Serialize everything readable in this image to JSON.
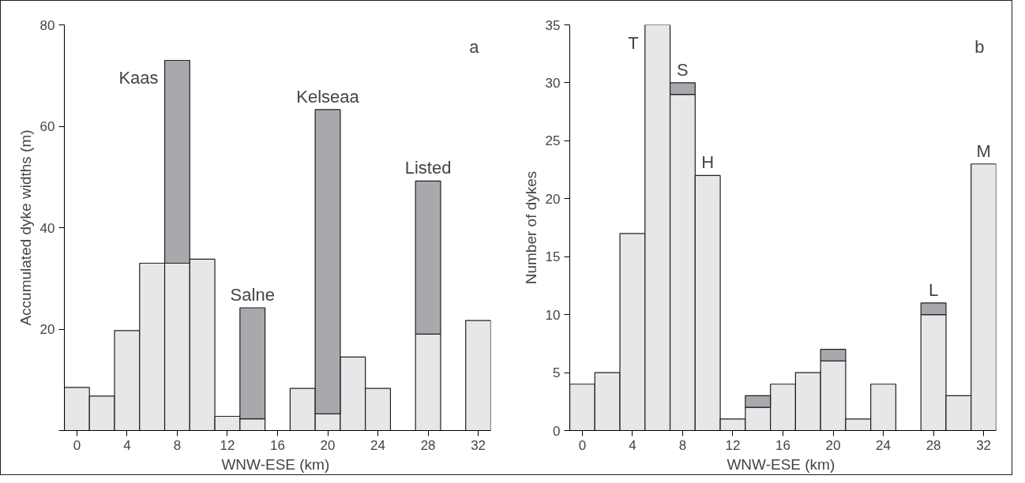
{
  "chart_data": [
    {
      "type": "bar",
      "stacked": true,
      "x": [
        0,
        2,
        4,
        6,
        8,
        10,
        12,
        14,
        16,
        18,
        20,
        22,
        24,
        26,
        28,
        30,
        32
      ],
      "xlabel": "WNW-ESE  (km)",
      "ylabel": "Accumulated dyke widths (m)",
      "series": [
        {
          "color": "#e6e7e8",
          "values": [
            8.5,
            6.8,
            19.7,
            33,
            33,
            33.8,
            2.8,
            2.3,
            0,
            8.3,
            3.3,
            14.5,
            8.3,
            0,
            19,
            0,
            21.7
          ]
        },
        {
          "color": "#a7a9ac",
          "values": [
            null,
            null,
            null,
            null,
            40,
            null,
            null,
            21.9,
            null,
            null,
            60,
            null,
            null,
            null,
            30.2,
            null,
            null
          ]
        }
      ],
      "xlim": [
        -1,
        33
      ],
      "xticks": [
        0,
        4,
        8,
        12,
        16,
        20,
        24,
        28,
        32
      ],
      "ylim": [
        0,
        80
      ],
      "yticks": [
        {
          "value": 0,
          "label": null
        },
        20,
        40,
        60,
        80
      ],
      "grid": false,
      "annotations": [
        "a",
        {
          "text": "Kaas",
          "x": 8,
          "y": 73
        },
        {
          "text": "Salne",
          "x": 14,
          "y": 24.2
        },
        {
          "text": "Kelseaa",
          "x": 20,
          "y": 63.3
        },
        {
          "text": "Listed",
          "x": 28,
          "y": 49.2
        }
      ]
    },
    {
      "type": "bar",
      "stacked": true,
      "x": [
        0,
        2,
        4,
        6,
        8,
        10,
        12,
        14,
        16,
        18,
        20,
        22,
        24,
        26,
        28,
        30,
        32
      ],
      "xlabel": "WNW-ESE  (km)",
      "ylabel": "Number of dykes",
      "series": [
        {
          "color": "#e6e7e8",
          "values": [
            4,
            5,
            17,
            35,
            29,
            22,
            1,
            2,
            4,
            5,
            6,
            1,
            4,
            0,
            10,
            3,
            23
          ]
        },
        {
          "color": "#a7a9ac",
          "values": [
            null,
            null,
            null,
            null,
            1,
            null,
            null,
            1,
            null,
            null,
            1,
            null,
            null,
            null,
            1,
            null,
            null
          ]
        }
      ],
      "xlim": [
        -1,
        33
      ],
      "xticks": [
        0,
        4,
        8,
        12,
        16,
        20,
        24,
        28,
        32
      ],
      "ylim": [
        0,
        35
      ],
      "yticks": [
        0,
        5,
        10,
        15,
        20,
        25,
        30,
        35
      ],
      "grid": false,
      "annotations": [
        "b",
        {
          "text": "T",
          "x": 6,
          "y": 35
        },
        {
          "text": "S",
          "x": 8,
          "y": 30
        },
        {
          "text": "H",
          "x": 10,
          "y": 22
        },
        {
          "text": "L",
          "x": 28,
          "y": 11
        },
        {
          "text": "M",
          "x": 32,
          "y": 23
        }
      ]
    }
  ]
}
